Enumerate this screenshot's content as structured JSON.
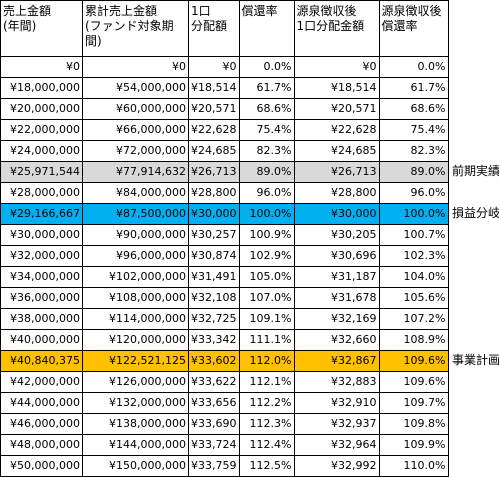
{
  "headers": [
    "売上金額\n(年間)",
    "累計売上金額\n(ファンド対象期間)",
    "1口\n分配額",
    "償還率",
    "源泉徴収後\n1口分配金額",
    "源泉徴収後\n償還率"
  ],
  "rows": [
    {
      "cells": [
        "¥0",
        "¥0",
        "¥0",
        "0.0%",
        "¥0",
        "0.0%"
      ],
      "highlight": "",
      "note": ""
    },
    {
      "cells": [
        "¥18,000,000",
        "¥54,000,000",
        "¥18,514",
        "61.7%",
        "¥18,514",
        "61.7%"
      ],
      "highlight": "",
      "note": ""
    },
    {
      "cells": [
        "¥20,000,000",
        "¥60,000,000",
        "¥20,571",
        "68.6%",
        "¥20,571",
        "68.6%"
      ],
      "highlight": "",
      "note": ""
    },
    {
      "cells": [
        "¥22,000,000",
        "¥66,000,000",
        "¥22,628",
        "75.4%",
        "¥22,628",
        "75.4%"
      ],
      "highlight": "",
      "note": ""
    },
    {
      "cells": [
        "¥24,000,000",
        "¥72,000,000",
        "¥24,685",
        "82.3%",
        "¥24,685",
        "82.3%"
      ],
      "highlight": "",
      "note": ""
    },
    {
      "cells": [
        "¥25,971,544",
        "¥77,914,632",
        "¥26,713",
        "89.0%",
        "¥26,713",
        "89.0%"
      ],
      "highlight": "gray",
      "note": "前期実績"
    },
    {
      "cells": [
        "¥28,000,000",
        "¥84,000,000",
        "¥28,800",
        "96.0%",
        "¥28,800",
        "96.0%"
      ],
      "highlight": "",
      "note": ""
    },
    {
      "cells": [
        "¥29,166,667",
        "¥87,500,000",
        "¥30,000",
        "100.0%",
        "¥30,000",
        "100.0%"
      ],
      "highlight": "blue",
      "note": "損益分岐"
    },
    {
      "cells": [
        "¥30,000,000",
        "¥90,000,000",
        "¥30,257",
        "100.9%",
        "¥30,205",
        "100.7%"
      ],
      "highlight": "",
      "note": ""
    },
    {
      "cells": [
        "¥32,000,000",
        "¥96,000,000",
        "¥30,874",
        "102.9%",
        "¥30,696",
        "102.3%"
      ],
      "highlight": "",
      "note": ""
    },
    {
      "cells": [
        "¥34,000,000",
        "¥102,000,000",
        "¥31,491",
        "105.0%",
        "¥31,187",
        "104.0%"
      ],
      "highlight": "",
      "note": ""
    },
    {
      "cells": [
        "¥36,000,000",
        "¥108,000,000",
        "¥32,108",
        "107.0%",
        "¥31,678",
        "105.6%"
      ],
      "highlight": "",
      "note": ""
    },
    {
      "cells": [
        "¥38,000,000",
        "¥114,000,000",
        "¥32,725",
        "109.1%",
        "¥32,169",
        "107.2%"
      ],
      "highlight": "",
      "note": ""
    },
    {
      "cells": [
        "¥40,000,000",
        "¥120,000,000",
        "¥33,342",
        "111.1%",
        "¥32,660",
        "108.9%"
      ],
      "highlight": "",
      "note": ""
    },
    {
      "cells": [
        "¥40,840,375",
        "¥122,521,125",
        "¥33,602",
        "112.0%",
        "¥32,867",
        "109.6%"
      ],
      "highlight": "gold",
      "note": "事業計画"
    },
    {
      "cells": [
        "¥42,000,000",
        "¥126,000,000",
        "¥33,622",
        "112.1%",
        "¥32,883",
        "109.6%"
      ],
      "highlight": "",
      "note": ""
    },
    {
      "cells": [
        "¥44,000,000",
        "¥132,000,000",
        "¥33,656",
        "112.2%",
        "¥32,910",
        "109.7%"
      ],
      "highlight": "",
      "note": ""
    },
    {
      "cells": [
        "¥46,000,000",
        "¥138,000,000",
        "¥33,690",
        "112.3%",
        "¥32,937",
        "109.8%"
      ],
      "highlight": "",
      "note": ""
    },
    {
      "cells": [
        "¥48,000,000",
        "¥144,000,000",
        "¥33,724",
        "112.4%",
        "¥32,964",
        "109.9%"
      ],
      "highlight": "",
      "note": ""
    },
    {
      "cells": [
        "¥50,000,000",
        "¥150,000,000",
        "¥33,759",
        "112.5%",
        "¥32,992",
        "110.0%"
      ],
      "highlight": "",
      "note": ""
    }
  ]
}
